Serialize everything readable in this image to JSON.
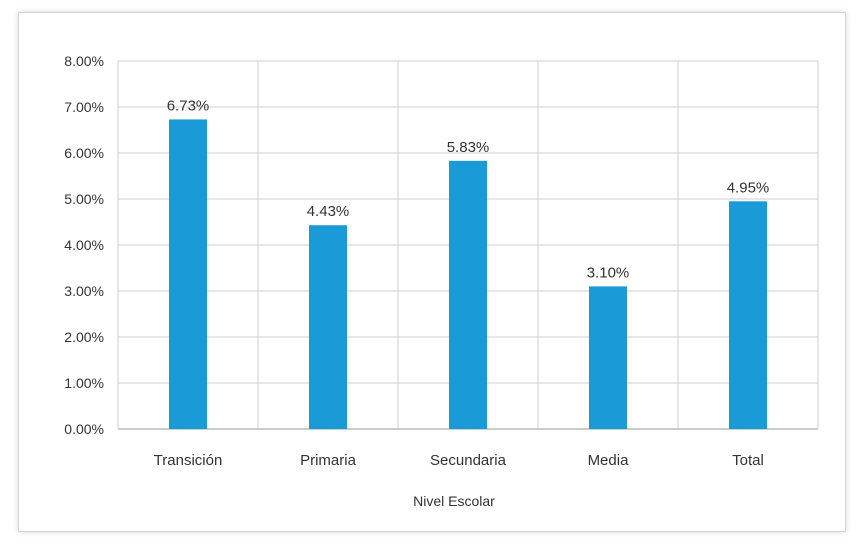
{
  "chart_data": {
    "type": "bar",
    "categories": [
      "Transición",
      "Primaria",
      "Secundaria",
      "Media",
      "Total"
    ],
    "values": [
      6.73,
      4.43,
      5.83,
      3.1,
      4.95
    ],
    "data_labels": [
      "6.73%",
      "4.43%",
      "5.83%",
      "3.10%",
      "4.95%"
    ],
    "y_ticks": [
      "0.00%",
      "1.00%",
      "2.00%",
      "3.00%",
      "4.00%",
      "5.00%",
      "6.00%",
      "7.00%",
      "8.00%"
    ],
    "xlabel": "Nivel Escolar",
    "ylabel": "",
    "ylim": [
      0,
      8
    ],
    "grid": true,
    "bar_color": "#1a9ad6"
  }
}
